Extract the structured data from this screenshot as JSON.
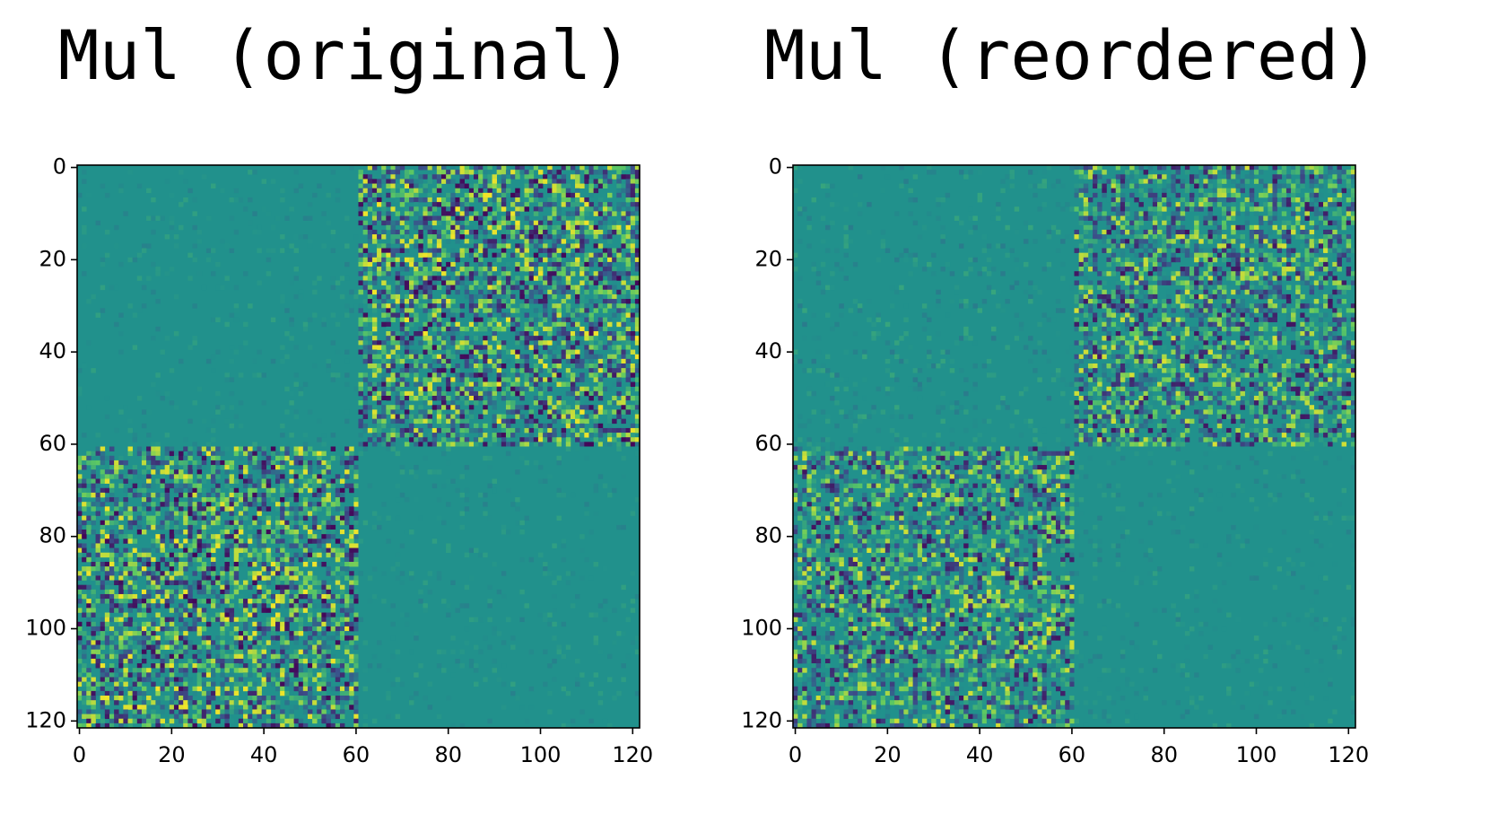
{
  "chart_data": [
    {
      "type": "heatmap",
      "title": "Mul (original)",
      "x_edges": [
        -0.5,
        60.5,
        121.5
      ],
      "y_edges": [
        -0.5,
        60.5,
        121.5
      ],
      "values": [
        [
          0.5,
          0.5
        ],
        [
          0.5,
          0.5
        ]
      ],
      "spread": [
        [
          0.03,
          0.22
        ],
        [
          0.22,
          0.03
        ]
      ],
      "colormap": "viridis",
      "clim": [
        0,
        1
      ],
      "xlim": [
        -0.5,
        121.5
      ],
      "ylim": [
        121.5,
        -0.5
      ],
      "xticks": [
        0,
        20,
        40,
        60,
        80,
        100,
        120
      ],
      "yticks": [
        0,
        20,
        40,
        60,
        80,
        100,
        120
      ]
    },
    {
      "type": "heatmap",
      "title": "Mul (reordered)",
      "x_edges": [
        -0.5,
        60.5,
        121.5
      ],
      "y_edges": [
        -0.5,
        60.5,
        121.5
      ],
      "values": [
        [
          0.5,
          0.5
        ],
        [
          0.5,
          0.5
        ]
      ],
      "spread": [
        [
          0.04,
          0.2
        ],
        [
          0.2,
          0.03
        ]
      ],
      "colormap": "viridis",
      "clim": [
        0,
        1
      ],
      "xlim": [
        -0.5,
        121.5
      ],
      "ylim": [
        121.5,
        -0.5
      ],
      "xticks": [
        0,
        20,
        40,
        60,
        80,
        100,
        120
      ],
      "yticks": [
        0,
        20,
        40,
        60,
        80,
        100,
        120
      ]
    }
  ]
}
